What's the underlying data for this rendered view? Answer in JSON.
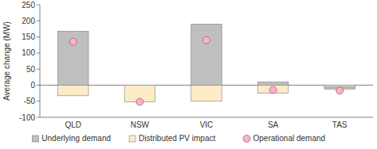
{
  "chart_data": {
    "type": "bar",
    "y_label": "Average change (MW)",
    "categories": [
      "QLD",
      "NSW",
      "VIC",
      "SA",
      "TAS"
    ],
    "series": [
      {
        "name": "Underlying demand",
        "type": "bar",
        "color": "#bfbfbf",
        "values": [
          168,
          0,
          190,
          10,
          -12
        ]
      },
      {
        "name": "Distributed PV impact",
        "type": "bar",
        "color": "#fdebc8",
        "values": [
          -33,
          -52,
          -50,
          -25,
          -5
        ]
      },
      {
        "name": "Operational demand",
        "type": "scatter",
        "marker": "circle",
        "color": "#f4b6c6",
        "values": [
          135,
          -52,
          140,
          -15,
          -17
        ]
      }
    ],
    "stacked": false,
    "ylim": [
      -100,
      250
    ],
    "yticks": [
      -100,
      -50,
      0,
      50,
      100,
      150,
      200,
      250
    ],
    "grid": false,
    "legend": "bottom"
  }
}
